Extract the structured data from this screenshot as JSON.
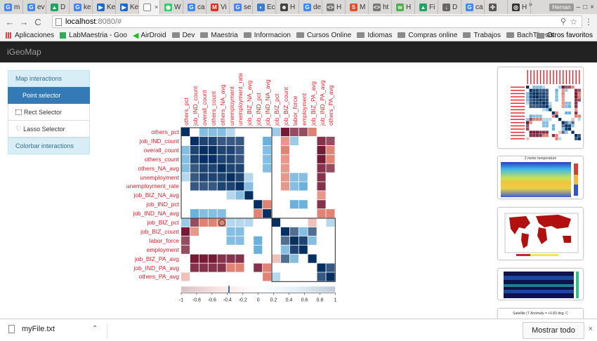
{
  "browser": {
    "tabs": [
      {
        "icon": "google-icon",
        "label": "m",
        "color": "#4285f4",
        "glyph": "G"
      },
      {
        "icon": "google-icon",
        "label": "ev",
        "color": "#4285f4",
        "glyph": "G"
      },
      {
        "icon": "google-drive-icon",
        "label": "D",
        "color": "#1da462",
        "glyph": "▲"
      },
      {
        "icon": "google-icon",
        "label": "ke",
        "color": "#4285f4",
        "glyph": "G"
      },
      {
        "icon": "kodi-icon",
        "label": "Ke",
        "color": "#1b6ac9",
        "glyph": "▶"
      },
      {
        "icon": "kodi-icon",
        "label": "Ke",
        "color": "#1b6ac9",
        "glyph": "▶"
      },
      {
        "icon": "page-icon",
        "label": "",
        "color": "#999999",
        "glyph": "",
        "active": true
      },
      {
        "icon": "whatsapp-icon",
        "label": "W",
        "color": "#25d366",
        "glyph": "◉"
      },
      {
        "icon": "google-icon",
        "label": "ca",
        "color": "#4285f4",
        "glyph": "G"
      },
      {
        "icon": "gmail-icon",
        "label": "Vi",
        "color": "#d93025",
        "glyph": "M"
      },
      {
        "icon": "google-icon",
        "label": "se",
        "color": "#4285f4",
        "glyph": "G"
      },
      {
        "icon": "edge-icon",
        "label": "Ec",
        "color": "#3a7bd5",
        "glyph": "◐"
      },
      {
        "icon": "profile-icon",
        "label": "H",
        "color": "#444444",
        "glyph": "☻"
      },
      {
        "icon": "google-icon",
        "label": "de",
        "color": "#4285f4",
        "glyph": "G"
      },
      {
        "icon": "code-icon",
        "label": "H",
        "color": "#777777",
        "glyph": "<>"
      },
      {
        "icon": "html5-icon",
        "label": "M",
        "color": "#e44d26",
        "glyph": "5"
      },
      {
        "icon": "code-icon",
        "label": "ht",
        "color": "#777777",
        "glyph": "<>"
      },
      {
        "icon": "w3-icon",
        "label": "H",
        "color": "#4caf50",
        "glyph": "w"
      },
      {
        "icon": "google-drive-icon",
        "label": "Fi",
        "color": "#1da462",
        "glyph": "▲"
      },
      {
        "icon": "download-icon",
        "label": "D",
        "color": "#666666",
        "glyph": "↓"
      },
      {
        "icon": "google-icon",
        "label": "ca",
        "color": "#4285f4",
        "glyph": "G"
      },
      {
        "icon": "network-icon",
        "label": "",
        "color": "#555555",
        "glyph": "✣"
      },
      {
        "icon": "github-icon",
        "label": "H",
        "color": "#333333",
        "glyph": "◎"
      }
    ],
    "active_tab_close": "×",
    "user_label": "Hernan",
    "window_controls": [
      "–",
      "□",
      "×"
    ],
    "nav": {
      "back": "←",
      "forward": "→",
      "reload": "C"
    },
    "url_host": "localhost",
    "url_path": ":8080/#",
    "zoom_glyph": "⚲",
    "star_glyph": "☆",
    "menu_glyph": "⋮",
    "bookmarks": [
      {
        "label": "Aplicaciones",
        "icon": "apps-grid-icon",
        "type": "apps"
      },
      {
        "label": "LabMaestria - Goo",
        "icon": "labmaestria-icon",
        "type": "lm"
      },
      {
        "label": "AirDroid",
        "icon": "airdroid-icon",
        "type": "airdroid"
      },
      {
        "label": "Dev",
        "icon": "folder-icon",
        "type": "folder"
      },
      {
        "label": "Maestria",
        "icon": "folder-icon",
        "type": "folder"
      },
      {
        "label": "Informacion",
        "icon": "folder-icon",
        "type": "folder"
      },
      {
        "label": "Cursos Online",
        "icon": "folder-icon",
        "type": "folder"
      },
      {
        "label": "Idiomas",
        "icon": "folder-icon",
        "type": "folder"
      },
      {
        "label": "Compras online",
        "icon": "folder-icon",
        "type": "folder"
      },
      {
        "label": "Trabajos",
        "icon": "folder-icon",
        "type": "folder"
      },
      {
        "label": "BachThesis",
        "icon": "folder-icon",
        "type": "folder"
      }
    ],
    "bookmarks_more": "»",
    "other_bookmarks": "Otros favoritos"
  },
  "app": {
    "title": "iGeoMap",
    "sidebar": {
      "map_header": "Map interactions",
      "items": [
        {
          "label": "Point selector",
          "icon": "",
          "active": true
        },
        {
          "label": "Rect Selector",
          "icon": "rect-select-icon",
          "active": false
        },
        {
          "label": "Lasso Selector",
          "icon": "lasso-icon",
          "active": false
        }
      ],
      "colorbar_header": "Colorbar interactions"
    }
  },
  "heatmap": {
    "variables": [
      "others_pct",
      "job_IND_count",
      "overall_count",
      "others_count",
      "others_NA_avg",
      "unemployment",
      "unemployment_rate",
      "job_BIZ_NA_avg",
      "job_IND_pct",
      "job_IND_NA_avg",
      "job_BIZ_pct",
      "job_BIZ_count",
      "labor_force",
      "employment",
      "job_BIZ_PA_avg",
      "job_IND_PA_avg",
      "others_PA_avg"
    ],
    "matrix": [
      [
        1,
        0,
        0.5,
        0.5,
        0.5,
        0.3,
        0,
        0,
        0,
        0,
        0.4,
        -0.9,
        -0.7,
        -0.7,
        -0.6,
        0,
        0
      ],
      [
        0,
        1,
        0.9,
        0.9,
        0.8,
        0.8,
        0.8,
        0,
        0,
        0.6,
        0,
        -0.5,
        0.4,
        0,
        0,
        -0.8,
        -0.7
      ],
      [
        0.5,
        0.9,
        1,
        1,
        0.9,
        0.9,
        0.8,
        0,
        0,
        0.5,
        0,
        -0.6,
        0,
        0,
        0,
        -0.9,
        -0.6
      ],
      [
        0.5,
        0.9,
        1,
        1,
        0.9,
        0.9,
        0.8,
        0,
        0,
        0.5,
        0,
        -0.5,
        0,
        0,
        0,
        -0.9,
        -0.6
      ],
      [
        0.5,
        0.8,
        0.9,
        0.9,
        1,
        0.9,
        0.9,
        0,
        0,
        0.5,
        0,
        -0.5,
        0,
        0,
        0,
        -0.8,
        -0.7
      ],
      [
        0.3,
        0.8,
        0.9,
        0.9,
        0.9,
        1,
        0.9,
        0.3,
        0,
        0,
        0,
        -0.5,
        0.5,
        0.5,
        0,
        -0.8,
        0
      ],
      [
        0,
        0.8,
        0.8,
        0.8,
        0.9,
        0.9,
        1,
        0.5,
        0,
        0,
        0,
        -0.5,
        0.5,
        0.6,
        0,
        -0.8,
        0
      ],
      [
        0,
        0,
        0,
        0,
        0,
        0.3,
        0.5,
        1,
        0,
        0,
        0,
        0,
        0,
        0,
        0,
        -0.5,
        0
      ],
      [
        0,
        0,
        0,
        0,
        0,
        0,
        0,
        0,
        1,
        -0.6,
        0,
        0,
        0.6,
        0.6,
        0,
        -0.8,
        0
      ],
      [
        0,
        0.6,
        0.5,
        0.5,
        0.5,
        0,
        0,
        0,
        -0.6,
        1,
        0,
        0,
        0,
        0,
        0,
        -0.6,
        -0.6
      ],
      [
        0.4,
        -0.7,
        -0.6,
        -0.6,
        -0.6,
        0.3,
        0.3,
        0.3,
        0,
        0,
        1,
        0,
        0,
        0,
        -0.3,
        0,
        0.3
      ],
      [
        -0.9,
        -0.5,
        0,
        0,
        0,
        0.5,
        0.5,
        0,
        0,
        0,
        0,
        1,
        0.7,
        0.5,
        0.7,
        0,
        0
      ],
      [
        -0.7,
        0,
        0,
        0,
        0,
        0.5,
        0.5,
        0,
        0.6,
        0,
        0,
        0.7,
        1,
        0.9,
        0.5,
        0,
        0
      ],
      [
        -0.7,
        0,
        0,
        0,
        0,
        0,
        0,
        0,
        0.6,
        0,
        0,
        0.5,
        0.9,
        1,
        0,
        0,
        0
      ],
      [
        0,
        -0.9,
        -0.9,
        -0.9,
        -0.8,
        -0.8,
        -0.8,
        0,
        0,
        0,
        -0.3,
        0.7,
        0.5,
        0,
        1,
        0,
        0
      ],
      [
        0,
        -0.8,
        -0.8,
        -0.8,
        -0.8,
        -0.6,
        -0.6,
        0,
        -0.8,
        -0.6,
        0,
        0,
        0,
        0,
        0,
        1,
        0.8
      ],
      [
        -0.3,
        0,
        0,
        0,
        0,
        0,
        0,
        0,
        0,
        -0.6,
        0.3,
        0,
        0,
        0,
        0,
        0.8,
        1
      ]
    ],
    "selected_cell": [
      10,
      4
    ],
    "colorbar_ticks": [
      "-1",
      "-0.8",
      "-0.6",
      "-0.4",
      "-0.2",
      "0",
      "0.2",
      "0.4",
      "0.6",
      "0.8",
      "1"
    ],
    "colorbar_marker": -0.38
  },
  "thumbnails": [
    {
      "kind": "heatmap-thumb",
      "title": ""
    },
    {
      "kind": "map-thumb",
      "title": "2 meter temperature"
    },
    {
      "kind": "world-map-thumb",
      "title": ""
    },
    {
      "kind": "satellite-thumb",
      "title": ""
    },
    {
      "kind": "anomaly-thumb",
      "title": "Satellite (T Anomaly = +0.83 deg. C"
    }
  ],
  "downloads": {
    "file_name": "myFile.txt",
    "chevron": "⌃",
    "show_all": "Mostrar todo",
    "close": "×"
  },
  "colors": {
    "appbar": "#222222",
    "accent": "#337ab7",
    "label_red": "#e0202a"
  }
}
